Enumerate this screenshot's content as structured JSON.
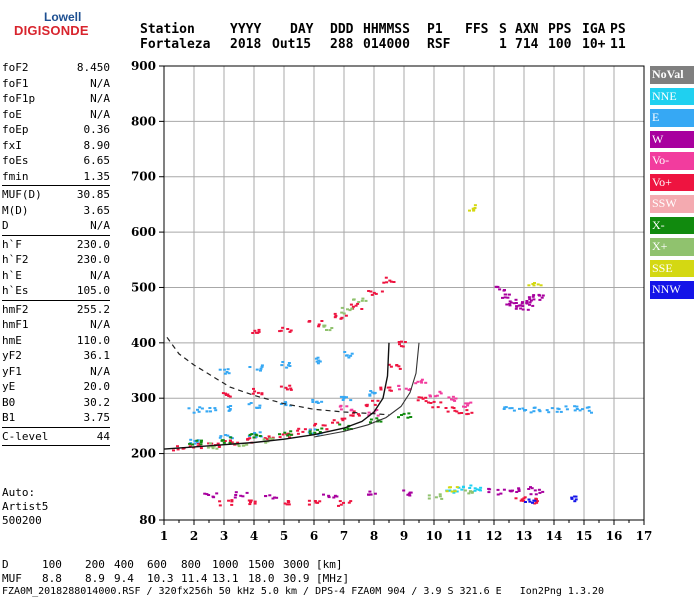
{
  "logo": {
    "line1": "Lowell",
    "line2": "DIGISONDE"
  },
  "header": {
    "labels": [
      "Station",
      "YYYY",
      "DAY",
      "DDD",
      "HHMMSS",
      "P1",
      "FFS",
      "S",
      "AXN",
      "PPS",
      "IGA",
      "PS"
    ],
    "values": [
      "Fortaleza",
      "2018",
      "Out15",
      "288",
      "014000",
      "RSF",
      "",
      "1",
      "714",
      "100",
      "10+",
      "11"
    ]
  },
  "params": {
    "group1": [
      {
        "name": "foF2",
        "value": "8.450"
      },
      {
        "name": "foF1",
        "value": "N/A"
      },
      {
        "name": "foF1p",
        "value": "N/A"
      },
      {
        "name": "foE",
        "value": "N/A"
      },
      {
        "name": "foEp",
        "value": "0.36"
      },
      {
        "name": "fxI",
        "value": "8.90"
      },
      {
        "name": "foEs",
        "value": "6.65"
      },
      {
        "name": "fmin",
        "value": "1.35"
      }
    ],
    "group2": [
      {
        "name": "MUF(D)",
        "value": "30.85"
      },
      {
        "name": "M(D)",
        "value": "3.65"
      },
      {
        "name": "D",
        "value": "N/A"
      }
    ],
    "group3": [
      {
        "name": "h`F",
        "value": "230.0"
      },
      {
        "name": "h`F2",
        "value": "230.0"
      },
      {
        "name": "h`E",
        "value": "N/A"
      },
      {
        "name": "h`Es",
        "value": "105.0"
      }
    ],
    "group4": [
      {
        "name": "hmF2",
        "value": "255.2"
      },
      {
        "name": "hmF1",
        "value": "N/A"
      },
      {
        "name": "hmE",
        "value": "110.0"
      },
      {
        "name": "yF2",
        "value": "36.1"
      },
      {
        "name": "yF1",
        "value": "N/A"
      },
      {
        "name": "yE",
        "value": "20.0"
      },
      {
        "name": "B0",
        "value": "30.2"
      },
      {
        "name": "B1",
        "value": "3.75"
      }
    ],
    "group5": [
      {
        "name": "C-level",
        "value": "44"
      }
    ]
  },
  "auto": {
    "line1": "Auto:",
    "line2": "Artist5",
    "line3": "500200"
  },
  "legend": [
    {
      "label": "NoVal",
      "color": "#7f7f7f"
    },
    {
      "label": "NNE",
      "color": "#1fd0f0"
    },
    {
      "label": "E",
      "color": "#36a8f4"
    },
    {
      "label": "W",
      "color": "#a8009e"
    },
    {
      "label": "Vo-",
      "color": "#f23c9e"
    },
    {
      "label": "Vo+",
      "color": "#ee1440"
    },
    {
      "label": "SSW",
      "color": "#f4aab0"
    },
    {
      "label": "X-",
      "color": "#118a0e"
    },
    {
      "label": "X+",
      "color": "#90c26e"
    },
    {
      "label": "SSE",
      "color": "#d4d812"
    },
    {
      "label": "NNW",
      "color": "#1414e8"
    }
  ],
  "chart_data": {
    "type": "scatter",
    "xlim": [
      1,
      17
    ],
    "ylim": [
      80,
      900
    ],
    "x_ticks": [
      1,
      2,
      3,
      4,
      5,
      6,
      7,
      8,
      9,
      10,
      11,
      12,
      13,
      14,
      15,
      16,
      17
    ],
    "y_ticks": [
      80,
      200,
      300,
      400,
      500,
      600,
      700,
      800,
      900
    ],
    "grid": true,
    "series": [
      {
        "name": "Vo+",
        "color": "#ee1440",
        "points": [
          [
            1.5,
            212
          ],
          [
            2.0,
            215
          ],
          [
            2.6,
            218
          ],
          [
            3.2,
            222
          ],
          [
            3.8,
            226
          ],
          [
            4.4,
            230
          ],
          [
            5.0,
            235
          ],
          [
            5.6,
            242
          ],
          [
            6.2,
            250
          ],
          [
            6.8,
            262
          ],
          [
            7.4,
            275
          ],
          [
            7.9,
            292
          ],
          [
            8.3,
            320
          ],
          [
            8.6,
            360
          ],
          [
            8.8,
            400
          ],
          [
            4.0,
            420
          ],
          [
            5.0,
            426
          ],
          [
            6.0,
            436
          ],
          [
            6.8,
            450
          ],
          [
            7.4,
            468
          ],
          [
            8.0,
            490
          ],
          [
            8.4,
            515
          ],
          [
            3.0,
            310
          ],
          [
            4.0,
            314
          ],
          [
            5.0,
            320
          ],
          [
            9.5,
            300
          ],
          [
            10.0,
            290
          ],
          [
            10.5,
            280
          ],
          [
            11.0,
            276
          ],
          [
            12.8,
            118
          ],
          [
            13.2,
            116
          ],
          [
            3.0,
            113
          ],
          [
            4.0,
            112
          ],
          [
            5.0,
            115
          ],
          [
            6.0,
            112
          ],
          [
            7.0,
            111
          ]
        ]
      },
      {
        "name": "E",
        "color": "#36a8f4",
        "points": [
          [
            2.0,
            280
          ],
          [
            2.5,
            282
          ],
          [
            3.0,
            284
          ],
          [
            4.0,
            288
          ],
          [
            5.0,
            292
          ],
          [
            6.0,
            296
          ],
          [
            7.0,
            300
          ],
          [
            8.0,
            310
          ],
          [
            3.0,
            350
          ],
          [
            4.0,
            356
          ],
          [
            5.0,
            362
          ],
          [
            6.0,
            370
          ],
          [
            7.0,
            380
          ],
          [
            12.5,
            283
          ],
          [
            13.0,
            281
          ],
          [
            13.5,
            282
          ],
          [
            14.0,
            280
          ],
          [
            14.5,
            282
          ],
          [
            15.0,
            281
          ],
          [
            2.0,
            225
          ],
          [
            3.0,
            230
          ],
          [
            4.0,
            235
          ],
          [
            6.0,
            240
          ]
        ]
      },
      {
        "name": "W",
        "color": "#a8009e",
        "points": [
          [
            12.2,
            500
          ],
          [
            12.3,
            488
          ],
          [
            12.5,
            476
          ],
          [
            12.7,
            470
          ],
          [
            12.9,
            466
          ],
          [
            13.1,
            472
          ],
          [
            13.3,
            480
          ],
          [
            13.5,
            485
          ],
          [
            2.5,
            125
          ],
          [
            3.5,
            127
          ],
          [
            4.5,
            124
          ],
          [
            6.5,
            126
          ],
          [
            8.0,
            128
          ],
          [
            9.0,
            130
          ],
          [
            12.0,
            133
          ],
          [
            12.5,
            135
          ],
          [
            13.0,
            136
          ],
          [
            13.4,
            132
          ]
        ]
      },
      {
        "name": "X-",
        "color": "#118a0e",
        "points": [
          [
            2.0,
            220
          ],
          [
            3.0,
            226
          ],
          [
            4.0,
            232
          ],
          [
            5.0,
            238
          ],
          [
            6.0,
            242
          ],
          [
            7.0,
            250
          ],
          [
            8.0,
            262
          ],
          [
            9.0,
            270
          ]
        ]
      },
      {
        "name": "X+",
        "color": "#90c26e",
        "points": [
          [
            6.5,
            430
          ],
          [
            7.0,
            460
          ],
          [
            7.5,
            480
          ],
          [
            2.5,
            215
          ],
          [
            3.5,
            220
          ],
          [
            4.5,
            224
          ],
          [
            10.0,
            125
          ],
          [
            11.0,
            130
          ]
        ]
      },
      {
        "name": "NNE",
        "color": "#1fd0f0",
        "points": [
          [
            10.5,
            135
          ],
          [
            11.0,
            140
          ],
          [
            11.5,
            138
          ]
        ]
      },
      {
        "name": "SSE",
        "color": "#d4d812",
        "points": [
          [
            11.3,
            645
          ],
          [
            13.3,
            505
          ],
          [
            10.5,
            138
          ]
        ]
      },
      {
        "name": "NNW",
        "color": "#1414e8",
        "points": [
          [
            13.2,
            118
          ],
          [
            14.5,
            121
          ]
        ]
      },
      {
        "name": "Vo-",
        "color": "#f23c9e",
        "points": [
          [
            9.0,
            320
          ],
          [
            9.5,
            330
          ],
          [
            10.0,
            310
          ],
          [
            10.5,
            300
          ],
          [
            11.0,
            290
          ],
          [
            7.0,
            285
          ],
          [
            8.0,
            275
          ]
        ]
      }
    ],
    "profile_dashed": [
      [
        1.1,
        410
      ],
      [
        1.5,
        380
      ],
      [
        2.0,
        360
      ],
      [
        2.6,
        340
      ],
      [
        3.2,
        320
      ],
      [
        4.0,
        305
      ],
      [
        5.0,
        290
      ],
      [
        6.0,
        280
      ],
      [
        7.0,
        275
      ],
      [
        8.0,
        272
      ],
      [
        8.5,
        270
      ]
    ],
    "profile_solid": [
      [
        1.0,
        208
      ],
      [
        2.0,
        212
      ],
      [
        3.0,
        216
      ],
      [
        4.0,
        220
      ],
      [
        5.0,
        226
      ],
      [
        6.0,
        234
      ],
      [
        7.0,
        246
      ],
      [
        7.6,
        258
      ],
      [
        8.0,
        275
      ],
      [
        8.3,
        300
      ],
      [
        8.45,
        340
      ],
      [
        8.5,
        400
      ]
    ],
    "profile_solid_x": [
      [
        6.0,
        230
      ],
      [
        7.0,
        240
      ],
      [
        7.8,
        252
      ],
      [
        8.4,
        265
      ],
      [
        8.9,
        285
      ],
      [
        9.2,
        310
      ],
      [
        9.4,
        345
      ],
      [
        9.5,
        400
      ]
    ],
    "frequency_axis_label": "",
    "height_axis_label": ""
  },
  "footer": {
    "d_label": "D",
    "d_values": [
      "100",
      "200",
      "400",
      "600",
      "800",
      "1000",
      "1500",
      "3000",
      "[km]"
    ],
    "muf_label": "MUF",
    "muf_values": [
      "8.8",
      "8.9",
      "9.4",
      "10.3",
      "11.4",
      "13.1",
      "18.0",
      "30.9",
      "[MHz]"
    ],
    "file_line": "FZA0M_2018288014000.RSF / 320fx256h 50 kHz 5.0 km / DPS-4 FZA0M 904 / 3.9 S 321.6 E   Ion2Png 1.3.20"
  }
}
